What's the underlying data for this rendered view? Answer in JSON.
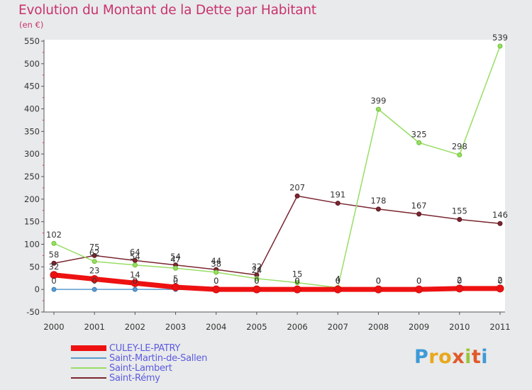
{
  "title": "Evolution du Montant de la Dette par Habitant",
  "unit_label": "(en €)",
  "logo": [
    "P",
    "r",
    "o",
    "x",
    "i",
    "t",
    "i"
  ],
  "logo_colors": [
    "#3d9ad8",
    "#e8a81c",
    "#e8a81c",
    "#e05a2a",
    "#9bc53d",
    "#e05a2a",
    "#3d9ad8"
  ],
  "chart_data": {
    "type": "line",
    "x": [
      "2000",
      "2001",
      "2002",
      "2003",
      "2004",
      "2005",
      "2006",
      "2007",
      "2008",
      "2009",
      "2010",
      "2011"
    ],
    "yticks": [
      -50,
      0,
      50,
      100,
      150,
      200,
      250,
      300,
      350,
      400,
      450,
      500,
      550
    ],
    "ylim": [
      -50,
      550
    ],
    "grid": false,
    "legend_position": "bottom-left",
    "series": [
      {
        "name": "CULEY-LE-PATRY",
        "color": "#ee1111",
        "values": [
          32,
          23,
          14,
          5,
          0,
          0,
          0,
          0,
          0,
          0,
          2,
          2
        ]
      },
      {
        "name": "Saint-Martin-de-Sallen",
        "color": "#5b9bd0",
        "values": [
          0,
          0,
          0,
          0,
          0,
          0,
          0,
          0,
          0,
          0,
          0,
          0
        ]
      },
      {
        "name": "Saint-Lambert",
        "color": "#99dd66",
        "values": [
          102,
          62,
          54,
          47,
          38,
          24,
          15,
          4,
          399,
          325,
          298,
          539
        ]
      },
      {
        "name": "Saint-Rémy",
        "color": "#7a2630",
        "values": [
          58,
          75,
          64,
          54,
          44,
          32,
          207,
          191,
          178,
          167,
          155,
          146
        ]
      }
    ]
  }
}
